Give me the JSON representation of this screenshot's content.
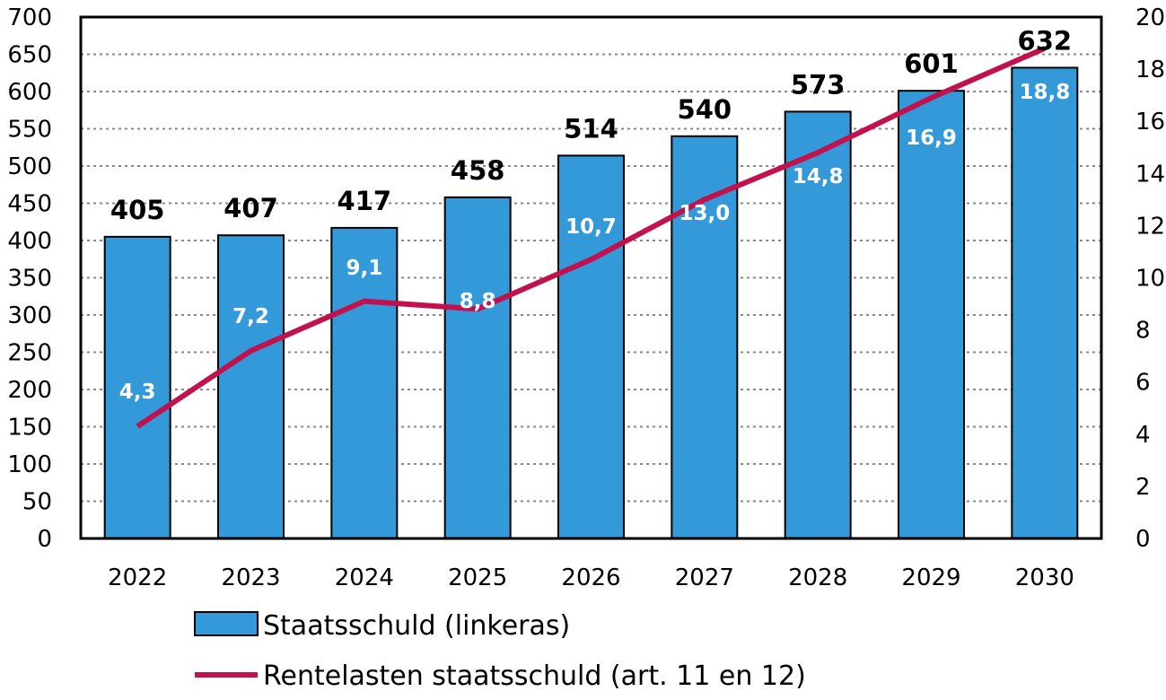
{
  "chart_data": {
    "type": "bar+line",
    "categories": [
      "2022",
      "2023",
      "2024",
      "2025",
      "2026",
      "2027",
      "2028",
      "2029",
      "2030"
    ],
    "series": [
      {
        "name": "Staatsschuld (linkeras)",
        "type": "bar",
        "axis": "left",
        "values": [
          405,
          407,
          417,
          458,
          514,
          540,
          573,
          601,
          632
        ],
        "labels": [
          "405",
          "407",
          "417",
          "458",
          "514",
          "540",
          "573",
          "601",
          "632"
        ],
        "color": "#3399d8"
      },
      {
        "name": "Rentelasten staatsschuld (art. 11 en 12)",
        "type": "line",
        "axis": "right",
        "values": [
          4.3,
          7.2,
          9.1,
          8.8,
          10.7,
          13.0,
          14.8,
          16.9,
          18.8
        ],
        "labels": [
          "4,3",
          "7,2",
          "9,1",
          "8,8",
          "10,7",
          "13,0",
          "14,8",
          "16,9",
          "18,8"
        ],
        "color": "#c2124e"
      }
    ],
    "left_axis": {
      "ylim": [
        0,
        700
      ],
      "ticks": [
        0,
        50,
        100,
        150,
        200,
        250,
        300,
        350,
        400,
        450,
        500,
        550,
        600,
        650,
        700
      ]
    },
    "right_axis": {
      "ylim": [
        0,
        20
      ],
      "ticks": [
        0,
        2,
        4,
        6,
        8,
        10,
        12,
        14,
        16,
        18,
        20
      ]
    },
    "grid": "horizontal dotted",
    "legend_placement": "bottom",
    "title": "",
    "xlabel": "",
    "ylabel": ""
  }
}
